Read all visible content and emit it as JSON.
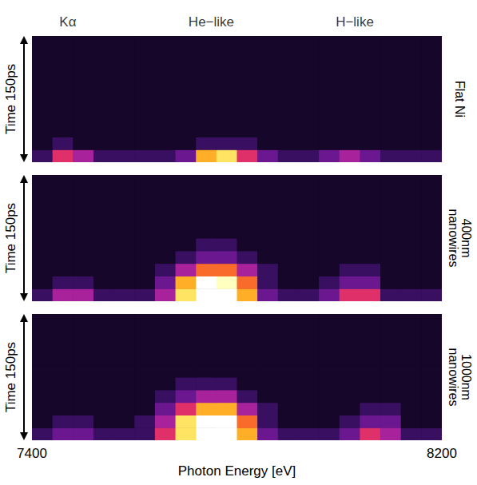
{
  "chart_data": [
    {
      "type": "heatmap",
      "title": "Flat Ni",
      "ylabel": "Time 150ps",
      "annotations": [
        {
          "text": "Kα",
          "x": 7470
        },
        {
          "text": "He−like",
          "x": 7750
        },
        {
          "text": "H−like",
          "x": 8030
        }
      ],
      "xlim": [
        7400,
        8200
      ],
      "ylim": [
        0,
        150
      ],
      "tick_labels": false,
      "color_range": [
        0,
        10
      ],
      "x_edges": [
        7400,
        7440,
        7480,
        7520,
        7560,
        7600,
        7640,
        7680,
        7720,
        7760,
        7800,
        7840,
        7880,
        7920,
        7960,
        8000,
        8040,
        8080,
        8120,
        8160,
        8200
      ],
      "y_edges": [
        0,
        15,
        30,
        45,
        60,
        75,
        90,
        105,
        120,
        135,
        150
      ],
      "cells": [
        [
          2,
          5,
          4,
          2,
          2,
          2,
          2,
          3,
          7,
          8,
          5,
          3,
          2,
          2,
          3,
          4,
          3,
          2,
          2,
          2
        ],
        [
          1,
          2,
          1,
          1,
          1,
          1,
          1,
          1,
          2,
          2,
          2,
          1,
          1,
          1,
          1,
          1,
          1,
          1,
          1,
          1
        ],
        [
          1,
          1,
          1,
          1,
          1,
          1,
          1,
          1,
          1,
          1,
          1,
          1,
          1,
          1,
          1,
          1,
          1,
          1,
          1,
          1
        ],
        [
          1,
          1,
          1,
          1,
          1,
          1,
          1,
          1,
          1,
          1,
          1,
          1,
          1,
          1,
          1,
          1,
          1,
          1,
          1,
          1
        ],
        [
          1,
          1,
          1,
          1,
          1,
          1,
          1,
          1,
          1,
          1,
          1,
          1,
          1,
          1,
          1,
          1,
          1,
          1,
          1,
          1
        ],
        [
          1,
          1,
          1,
          1,
          1,
          1,
          1,
          1,
          1,
          1,
          1,
          1,
          1,
          1,
          1,
          1,
          1,
          1,
          1,
          1
        ],
        [
          1,
          1,
          1,
          1,
          1,
          1,
          1,
          1,
          1,
          1,
          1,
          1,
          1,
          1,
          1,
          1,
          1,
          1,
          1,
          1
        ],
        [
          1,
          1,
          1,
          1,
          1,
          1,
          1,
          1,
          1,
          1,
          1,
          1,
          1,
          1,
          1,
          1,
          1,
          1,
          1,
          1
        ],
        [
          1,
          1,
          1,
          1,
          1,
          1,
          1,
          1,
          1,
          1,
          1,
          1,
          1,
          1,
          1,
          1,
          1,
          1,
          1,
          1
        ],
        [
          1,
          1,
          1,
          1,
          1,
          1,
          1,
          1,
          1,
          1,
          1,
          1,
          1,
          1,
          1,
          1,
          1,
          1,
          1,
          1
        ]
      ]
    },
    {
      "type": "heatmap",
      "title": "400nm nanowires",
      "ylabel": "Time 150ps",
      "xlim": [
        7400,
        8200
      ],
      "ylim": [
        0,
        150
      ],
      "tick_labels": false,
      "color_range": [
        0,
        10
      ],
      "x_edges": [
        7400,
        7440,
        7480,
        7520,
        7560,
        7600,
        7640,
        7680,
        7720,
        7760,
        7800,
        7840,
        7880,
        7920,
        7960,
        8000,
        8040,
        8080,
        8120,
        8160,
        8200
      ],
      "y_edges": [
        0,
        15,
        30,
        45,
        60,
        75,
        90,
        105,
        120,
        135,
        150
      ],
      "cells": [
        [
          2,
          4,
          4,
          2,
          2,
          2,
          4,
          8,
          10,
          10,
          7,
          3,
          2,
          2,
          3,
          5,
          5,
          2,
          2,
          2
        ],
        [
          1,
          2,
          2,
          1,
          1,
          1,
          3,
          7,
          10,
          9,
          6,
          2,
          1,
          1,
          2,
          3,
          3,
          1,
          1,
          1
        ],
        [
          1,
          1,
          1,
          1,
          1,
          1,
          2,
          4,
          6,
          6,
          4,
          2,
          1,
          1,
          1,
          2,
          2,
          1,
          1,
          1
        ],
        [
          1,
          1,
          1,
          1,
          1,
          1,
          1,
          2,
          3,
          3,
          2,
          1,
          1,
          1,
          1,
          1,
          1,
          1,
          1,
          1
        ],
        [
          1,
          1,
          1,
          1,
          1,
          1,
          1,
          1,
          2,
          2,
          1,
          1,
          1,
          1,
          1,
          1,
          1,
          1,
          1,
          1
        ],
        [
          1,
          1,
          1,
          1,
          1,
          1,
          1,
          1,
          1,
          1,
          1,
          1,
          1,
          1,
          1,
          1,
          1,
          1,
          1,
          1
        ],
        [
          1,
          1,
          1,
          1,
          1,
          1,
          1,
          1,
          1,
          1,
          1,
          1,
          1,
          1,
          1,
          1,
          1,
          1,
          1,
          1
        ],
        [
          1,
          1,
          1,
          1,
          1,
          1,
          1,
          1,
          1,
          1,
          1,
          1,
          1,
          1,
          1,
          1,
          1,
          1,
          1,
          1
        ],
        [
          1,
          1,
          1,
          1,
          1,
          1,
          1,
          1,
          1,
          1,
          1,
          1,
          1,
          1,
          1,
          1,
          1,
          1,
          1,
          1
        ],
        [
          1,
          1,
          1,
          1,
          1,
          1,
          1,
          1,
          1,
          1,
          1,
          1,
          1,
          1,
          1,
          1,
          1,
          1,
          1,
          1
        ]
      ]
    },
    {
      "type": "heatmap",
      "title": "1000nm nanowires",
      "ylabel": "Time 150ps",
      "xlabel": "Photon Energy [eV]",
      "xlim": [
        7400,
        8200
      ],
      "ylim": [
        0,
        150
      ],
      "xticks": [
        7400,
        8200
      ],
      "tick_labels": "x",
      "color_range": [
        0,
        10
      ],
      "x_edges": [
        7400,
        7440,
        7480,
        7520,
        7560,
        7600,
        7640,
        7680,
        7720,
        7760,
        7800,
        7840,
        7880,
        7920,
        7960,
        8000,
        8040,
        8080,
        8120,
        8160,
        8200
      ],
      "y_edges": [
        0,
        15,
        30,
        45,
        60,
        75,
        90,
        105,
        120,
        135,
        150
      ],
      "cells": [
        [
          2,
          3,
          3,
          2,
          2,
          2,
          5,
          8,
          10,
          10,
          7,
          3,
          2,
          2,
          2,
          3,
          5,
          4,
          2,
          2
        ],
        [
          1,
          2,
          2,
          1,
          1,
          2,
          4,
          8,
          10,
          10,
          6,
          2,
          1,
          1,
          1,
          2,
          3,
          3,
          1,
          1
        ],
        [
          1,
          1,
          1,
          1,
          1,
          1,
          3,
          5,
          7,
          7,
          4,
          2,
          1,
          1,
          1,
          1,
          2,
          2,
          1,
          1
        ],
        [
          1,
          1,
          1,
          1,
          1,
          1,
          2,
          3,
          4,
          4,
          2,
          1,
          1,
          1,
          1,
          1,
          1,
          1,
          1,
          1
        ],
        [
          1,
          1,
          1,
          1,
          1,
          1,
          1,
          2,
          2,
          2,
          1,
          1,
          1,
          1,
          1,
          1,
          1,
          1,
          1,
          1
        ],
        [
          1,
          1,
          1,
          1,
          1,
          1,
          1,
          1,
          1,
          1,
          1,
          1,
          1,
          1,
          1,
          1,
          1,
          1,
          1,
          1
        ],
        [
          1,
          1,
          1,
          1,
          1,
          1,
          1,
          1,
          1,
          1,
          1,
          1,
          1,
          1,
          1,
          1,
          1,
          1,
          1,
          1
        ],
        [
          1,
          1,
          1,
          1,
          1,
          1,
          1,
          1,
          1,
          1,
          1,
          1,
          1,
          1,
          1,
          1,
          1,
          1,
          1,
          1
        ],
        [
          1,
          1,
          1,
          1,
          1,
          1,
          1,
          1,
          1,
          1,
          1,
          1,
          1,
          1,
          1,
          1,
          1,
          1,
          1,
          1
        ],
        [
          1,
          1,
          1,
          1,
          1,
          1,
          1,
          1,
          1,
          1,
          1,
          1,
          1,
          1,
          1,
          1,
          1,
          1,
          1,
          1
        ]
      ]
    }
  ]
}
